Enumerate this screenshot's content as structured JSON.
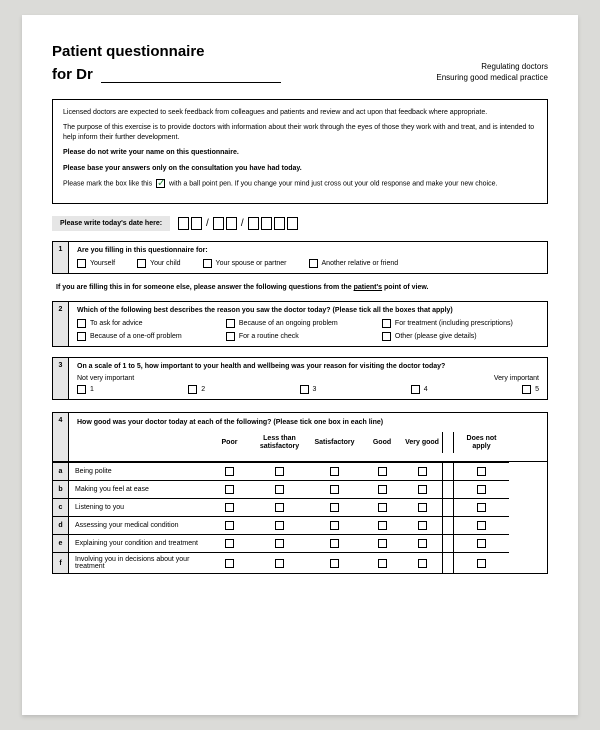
{
  "header": {
    "title": "Patient questionnaire",
    "for_label": "for Dr",
    "right_line1": "Regulating doctors",
    "right_line2": "Ensuring good medical practice"
  },
  "intro": {
    "p1": "Licensed doctors are expected to seek feedback from colleagues and patients and review and act upon that feedback where appropriate.",
    "p2": "The purpose of this exercise is to provide doctors with information about their work through the eyes of those they work with and treat, and is intended to help inform their further development.",
    "p3": "Please do not write your name on this questionnaire.",
    "p4": "Please base your answers only on the consultation you have had today.",
    "p5a": "Please mark the box like this",
    "p5b": "with a ball point pen. If you change your mind just cross out your old response and make your new choice."
  },
  "date_label": "Please write today's date here:",
  "q1": {
    "num": "1",
    "text": "Are you filling in this questionnaire for:",
    "options": [
      "Yourself",
      "Your child",
      "Your spouse or partner",
      "Another relative or friend"
    ]
  },
  "between_note_a": "If you are filling this in for someone else, please answer the following questions from the ",
  "between_note_u": "patient's",
  "between_note_b": " point of view.",
  "q2": {
    "num": "2",
    "text": "Which of the following best describes the reason you saw the doctor today? (Please tick all the boxes that apply)",
    "options": [
      "To ask for advice",
      "Because of an ongoing problem",
      "For treatment (including prescriptions)",
      "Because of a one-off problem",
      "For a routine check",
      "Other (please give details)"
    ]
  },
  "q3": {
    "num": "3",
    "text": "On a scale of 1 to 5, how important to your health and wellbeing was your reason for visiting the doctor today?",
    "left_label": "Not very important",
    "right_label": "Very important",
    "scale": [
      "1",
      "2",
      "3",
      "4",
      "5"
    ]
  },
  "q4": {
    "num": "4",
    "text": "How good was your doctor today at each of the following? (Please tick one box in each line)",
    "cols": [
      "Poor",
      "Less than satisfactory",
      "Satisfactory",
      "Good",
      "Very good"
    ],
    "dna": "Does not apply",
    "rows": [
      {
        "l": "a",
        "t": "Being polite"
      },
      {
        "l": "b",
        "t": "Making you feel at ease"
      },
      {
        "l": "c",
        "t": "Listening to you"
      },
      {
        "l": "d",
        "t": "Assessing your medical condition"
      },
      {
        "l": "e",
        "t": "Explaining your condition and treatment"
      },
      {
        "l": "f",
        "t": "Involving you in decisions about your treatment"
      }
    ]
  }
}
